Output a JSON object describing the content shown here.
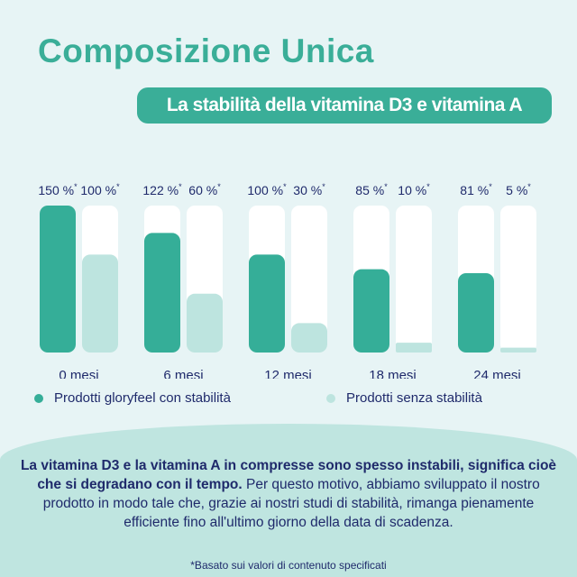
{
  "title": "Composizione Unica",
  "subtitle": "La stabilità della vitamina D3 e vitamina A",
  "chart_data": {
    "type": "bar",
    "categories": [
      "0 mesi",
      "6 mesi",
      "12 mesi",
      "18 mesi",
      "24 mesi"
    ],
    "series": [
      {
        "name": "Prodotti gloryfeel con stabilità",
        "values": [
          150,
          122,
          100,
          85,
          81
        ],
        "labels": [
          "150 %",
          "122 %",
          "100 %",
          "85 %",
          "81 %"
        ],
        "color": "#35ae98"
      },
      {
        "name": "Prodotti senza stabilità",
        "values": [
          100,
          60,
          30,
          10,
          5
        ],
        "labels": [
          "100 %",
          "60 %",
          "30 %",
          "10 %",
          "5 %"
        ],
        "color": "#bde4df"
      }
    ],
    "label_marker": "*",
    "ylim": [
      0,
      150
    ],
    "track_color": "#ffffff",
    "legend_position": "bottom"
  },
  "body": {
    "bold": "La vitamina D3 e la vitamina A in compresse sono spesso instabili, significa cioè che si degradano con il tempo.",
    "normal": " Per questo motivo, abbiamo sviluppato il nostro prodotto in modo tale che, grazie ai nostri studi di stabilità, rimanga pienamente efficiente fino all'ultimo giorno della data di scadenza."
  },
  "footnote": "*Basato sui valori di contenuto specificati"
}
